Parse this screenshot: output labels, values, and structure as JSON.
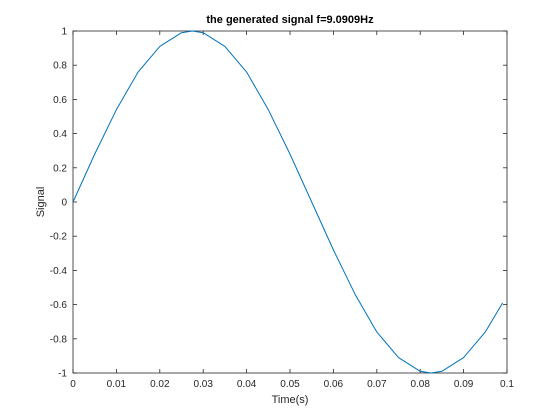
{
  "chart_data": {
    "type": "line",
    "title": "the generated signal f=9.0909Hz",
    "xlabel": "Time(s)",
    "ylabel": "Signal",
    "xlim": [
      0,
      0.1
    ],
    "ylim": [
      -1,
      1
    ],
    "xticks": [
      0,
      0.01,
      0.02,
      0.03,
      0.04,
      0.05,
      0.06,
      0.07,
      0.08,
      0.09,
      0.1
    ],
    "xtick_labels": [
      "0",
      "0.01",
      "0.02",
      "0.03",
      "0.04",
      "0.05",
      "0.06",
      "0.07",
      "0.08",
      "0.09",
      "0.1"
    ],
    "yticks": [
      -1,
      -0.8,
      -0.6,
      -0.4,
      -0.2,
      0,
      0.2,
      0.4,
      0.6,
      0.8,
      1
    ],
    "ytick_labels": [
      "-1",
      "-0.8",
      "-0.6",
      "-0.4",
      "-0.2",
      "0",
      "0.2",
      "0.4",
      "0.6",
      "0.8",
      "1"
    ],
    "grid": false,
    "box": true,
    "series": [
      {
        "color": "#0072bd",
        "x": [
          0,
          0.005,
          0.01,
          0.015,
          0.02,
          0.025,
          0.0275,
          0.03,
          0.035,
          0.04,
          0.045,
          0.05,
          0.055,
          0.06,
          0.065,
          0.07,
          0.075,
          0.08,
          0.0825,
          0.085,
          0.09,
          0.095,
          0.099
        ],
        "y": [
          0,
          0.28,
          0.54,
          0.76,
          0.91,
          0.99,
          1.0,
          0.99,
          0.91,
          0.76,
          0.54,
          0.28,
          0,
          -0.28,
          -0.54,
          -0.76,
          -0.91,
          -0.99,
          -1.0,
          -0.99,
          -0.91,
          -0.76,
          -0.59
        ]
      }
    ]
  }
}
